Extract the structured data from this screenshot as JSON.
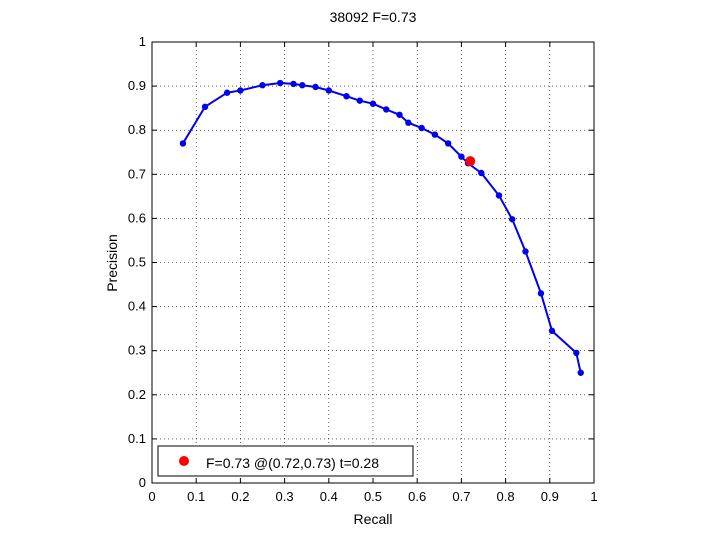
{
  "chart_data": {
    "type": "line",
    "title": "38092 F=0.73",
    "xlabel": "Recall",
    "ylabel": "Precision",
    "xlim": [
      0,
      1
    ],
    "ylim": [
      0,
      1
    ],
    "xticks": [
      0,
      0.1,
      0.2,
      0.3,
      0.4,
      0.5,
      0.6,
      0.7,
      0.8,
      0.9,
      1
    ],
    "yticks": [
      0,
      0.1,
      0.2,
      0.3,
      0.4,
      0.5,
      0.6,
      0.7,
      0.8,
      0.9,
      1
    ],
    "xtick_labels": [
      "0",
      "0.1",
      "0.2",
      "0.3",
      "0.4",
      "0.5",
      "0.6",
      "0.7",
      "0.8",
      "0.9",
      "1"
    ],
    "ytick_labels": [
      "0",
      "0.1",
      "0.2",
      "0.3",
      "0.4",
      "0.5",
      "0.6",
      "0.7",
      "0.8",
      "0.9",
      "1"
    ],
    "grid": true,
    "grid_style": "dotted",
    "series": [
      {
        "color": "#0000ee",
        "x": [
          0.07,
          0.12,
          0.17,
          0.2,
          0.25,
          0.29,
          0.32,
          0.34,
          0.37,
          0.4,
          0.44,
          0.47,
          0.5,
          0.53,
          0.56,
          0.58,
          0.61,
          0.64,
          0.67,
          0.7,
          0.715,
          0.745,
          0.785,
          0.815,
          0.845,
          0.88,
          0.905,
          0.96,
          0.97
        ],
        "y": [
          0.77,
          0.853,
          0.885,
          0.89,
          0.902,
          0.907,
          0.905,
          0.902,
          0.898,
          0.89,
          0.877,
          0.867,
          0.86,
          0.847,
          0.835,
          0.817,
          0.805,
          0.79,
          0.77,
          0.74,
          0.725,
          0.703,
          0.652,
          0.598,
          0.525,
          0.43,
          0.345,
          0.295,
          0.25
        ]
      }
    ],
    "highlight_point": {
      "x": 0.72,
      "y": 0.73,
      "color": "#ff0000"
    },
    "legend": {
      "position": "bottom-left",
      "entries": [
        {
          "label": "F=0.73 @(0.72,0.73) t=0.28",
          "marker_color": "#ff0000"
        }
      ]
    }
  }
}
